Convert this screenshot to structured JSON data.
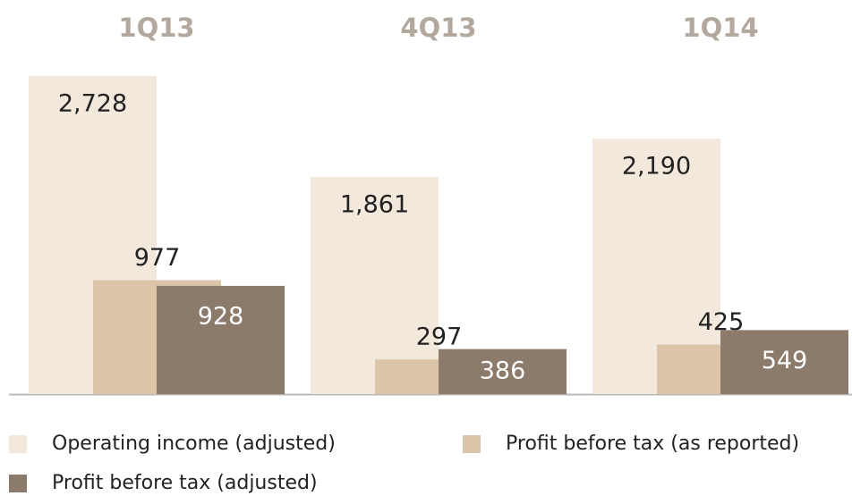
{
  "chart_data": {
    "type": "bar",
    "categories": [
      "1Q13",
      "4Q13",
      "1Q14"
    ],
    "series": [
      {
        "name": "Operating income (adjusted)",
        "color": "#f3e8dc",
        "values": [
          2728,
          1861,
          2190
        ],
        "value_labels": [
          "2,728",
          "1,861",
          "2,190"
        ]
      },
      {
        "name": "Profit before tax (as reported)",
        "color": "#dcc4a8",
        "values": [
          977,
          297,
          425
        ]
      },
      {
        "name": "Profit before tax (adjusted)",
        "color": "#8c7b6b",
        "values": [
          928,
          386,
          549
        ]
      }
    ]
  }
}
